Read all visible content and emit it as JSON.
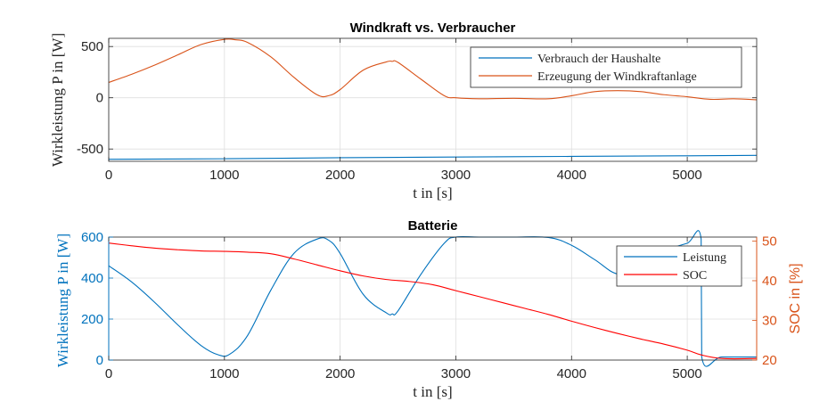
{
  "chart_data": [
    {
      "type": "line",
      "title": "Windkraft vs. Verbraucher",
      "xlabel": "t in [s]",
      "ylabel": "Wirkleistung P in [W]",
      "xlim": [
        0,
        5600
      ],
      "ylim": [
        -620,
        580
      ],
      "xticks": [
        0,
        1000,
        2000,
        3000,
        4000,
        5000
      ],
      "yticks": [
        -500,
        0,
        500
      ],
      "xtick_labels": [
        "0",
        "1000",
        "2000",
        "3000",
        "4000",
        "5000"
      ],
      "ytick_labels": [
        "-500",
        "0",
        "500"
      ],
      "grid": true,
      "legend_position": "top-right",
      "series": [
        {
          "name": "Verbrauch der Haushalte",
          "color": "#0072BD",
          "x": [
            0,
            1000,
            2000,
            3000,
            4000,
            5000,
            5600
          ],
          "y": [
            -600,
            -595,
            -585,
            -578,
            -572,
            -566,
            -562
          ]
        },
        {
          "name": "Erzeugung der Windkraftanlage",
          "color": "#D95319",
          "x": [
            0,
            200,
            400,
            600,
            800,
            1000,
            1100,
            1200,
            1400,
            1600,
            1800,
            1900,
            2000,
            2200,
            2400,
            2450,
            2500,
            2700,
            2900,
            3000,
            3200,
            3500,
            3800,
            4000,
            4200,
            4400,
            4600,
            4800,
            5000,
            5200,
            5400,
            5600
          ],
          "y": [
            150,
            230,
            320,
            420,
            520,
            570,
            565,
            540,
            400,
            200,
            30,
            20,
            80,
            270,
            350,
            355,
            345,
            180,
            20,
            0,
            -10,
            -5,
            -10,
            20,
            60,
            70,
            60,
            30,
            10,
            -15,
            -10,
            -20
          ]
        }
      ]
    },
    {
      "type": "line",
      "title": "Batterie",
      "xlabel": "t in [s]",
      "ylabel": "Wirkleistung P in [W]",
      "ylabel_right": "SOC in [%]",
      "xlim": [
        0,
        5600
      ],
      "ylim": [
        0,
        600
      ],
      "ylim_right": [
        20,
        51
      ],
      "xticks": [
        0,
        1000,
        2000,
        3000,
        4000,
        5000
      ],
      "yticks": [
        0,
        200,
        400,
        600
      ],
      "yticks_right": [
        20,
        30,
        40,
        50
      ],
      "xtick_labels": [
        "0",
        "1000",
        "2000",
        "3000",
        "4000",
        "5000"
      ],
      "ytick_labels": [
        "0",
        "200",
        "400",
        "600"
      ],
      "ytick_labels_right": [
        "20",
        "30",
        "40",
        "50"
      ],
      "grid": true,
      "legend_position": "top-right",
      "series": [
        {
          "name": "Leistung",
          "color": "#0072BD",
          "axis": "left",
          "x": [
            0,
            200,
            400,
            600,
            800,
            950,
            1050,
            1200,
            1400,
            1600,
            1800,
            1900,
            2000,
            2200,
            2400,
            2450,
            2500,
            2700,
            2900,
            3000,
            3200,
            3500,
            3800,
            4000,
            4200,
            4400,
            4600,
            4800,
            5000,
            5120,
            5125,
            5300,
            5600
          ],
          "y": [
            460,
            380,
            280,
            170,
            70,
            25,
            30,
            120,
            340,
            520,
            590,
            585,
            520,
            320,
            230,
            225,
            240,
            420,
            570,
            600,
            600,
            600,
            598,
            560,
            490,
            420,
            450,
            530,
            570,
            590,
            15,
            15,
            15
          ]
        },
        {
          "name": "SOC",
          "color": "#FF0000",
          "axis": "right",
          "x": [
            0,
            200,
            400,
            600,
            800,
            1000,
            1200,
            1400,
            1600,
            1800,
            2000,
            2200,
            2400,
            2600,
            2800,
            3000,
            3200,
            3400,
            3600,
            3800,
            4000,
            4200,
            4400,
            4600,
            4800,
            5000,
            5120,
            5300,
            5600
          ],
          "y": [
            49.5,
            48.8,
            48.2,
            47.8,
            47.5,
            47.4,
            47.2,
            46.8,
            45.5,
            44.0,
            42.5,
            41.2,
            40.3,
            39.8,
            39.0,
            37.5,
            36.0,
            34.5,
            33.0,
            31.5,
            29.8,
            28.2,
            26.7,
            25.3,
            24.0,
            22.5,
            21.3,
            20.4,
            20.4
          ]
        }
      ]
    }
  ]
}
